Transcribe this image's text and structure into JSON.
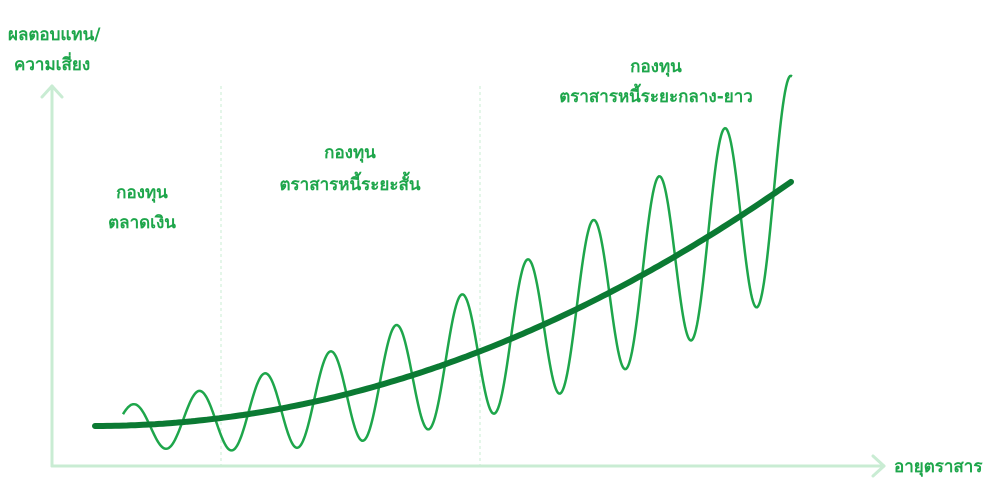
{
  "axes": {
    "y_label": [
      "ผลตอบแทน/",
      "ความเสี่ยง"
    ],
    "x_label": "อายุตราสาร"
  },
  "regions": [
    {
      "lines": [
        "กองทุน",
        "ตลาดเงิน"
      ]
    },
    {
      "lines": [
        "กองทุน",
        "ตราสารหนี้ระยะสั้น"
      ]
    },
    {
      "lines": [
        "กองทุน",
        "ตราสารหนี้ระยะกลาง-ยาว"
      ]
    }
  ]
}
